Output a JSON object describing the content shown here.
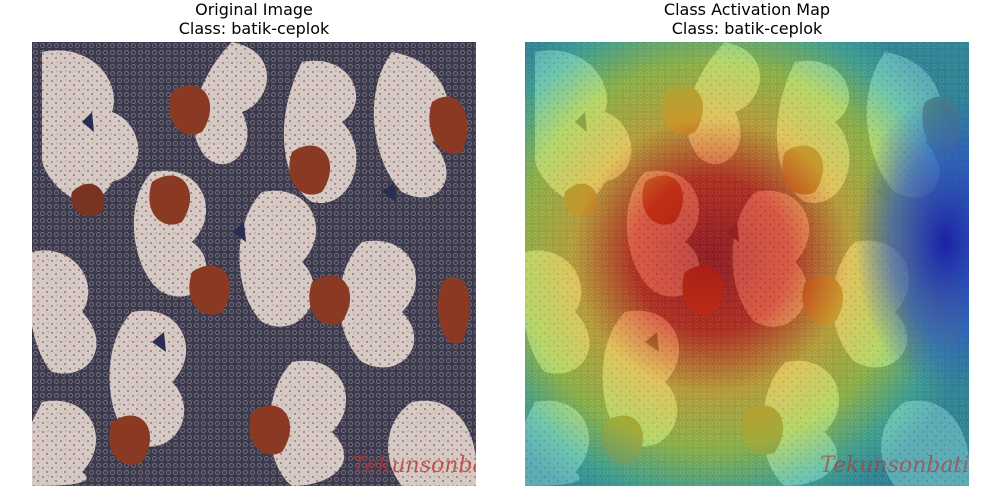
{
  "panels": [
    {
      "title_line1": "Original Image",
      "title_line2": "Class: batik-ceplok",
      "image_description": "batik fabric with cream cloud-like motifs and rust-brown leaf shapes on a dark navy patterned ground",
      "watermark": "Tekunsonbatic"
    },
    {
      "title_line1": "Class Activation Map",
      "title_line2": "Class: batik-ceplok",
      "image_description": "same batik fabric overlaid with a jet colormap heatmap; red activation concentrated in center-left, blue on the right edge",
      "watermark": "Tekunsonbatic"
    }
  ],
  "colors": {
    "fabric_ground": "#3a3a4e",
    "motif_cream": "#d8ccc8",
    "motif_rust": "#8a3a22",
    "heat_red": "#c81e12",
    "heat_yellow": "#e0e040",
    "heat_cyan": "#3ec2a8",
    "heat_blue": "#2a2ab8"
  }
}
